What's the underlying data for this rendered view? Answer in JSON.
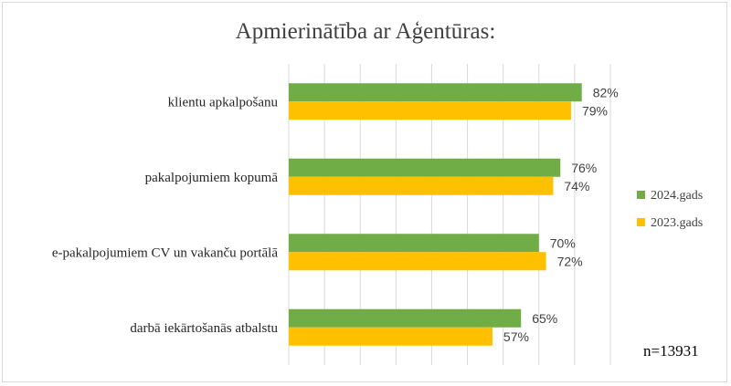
{
  "chart_data": {
    "type": "bar",
    "orientation": "horizontal",
    "title": "Apmierinātība ar Aģentūras:",
    "categories": [
      "klientu apkalpošanu",
      "pakalpojumiem kopumā",
      "e-pakalpojumiem CV un vakanču portālā",
      "darbā iekārtošanās atbalstu"
    ],
    "series": [
      {
        "name": "2024.gads",
        "color": "#70ad47",
        "values": [
          82,
          76,
          70,
          65
        ],
        "labels": [
          "82%",
          "76%",
          "70%",
          "65%"
        ]
      },
      {
        "name": "2023.gads",
        "color": "#ffc000",
        "values": [
          79,
          74,
          72,
          57
        ],
        "labels": [
          "79%",
          "74%",
          "72%",
          "57%"
        ]
      }
    ],
    "xlim": [
      0,
      90
    ],
    "grid": true,
    "legend_position": "right",
    "annotation": "n=13931"
  }
}
